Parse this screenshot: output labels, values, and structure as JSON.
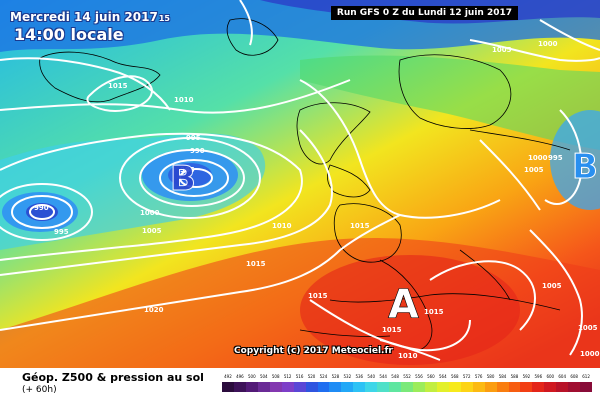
{
  "header": {
    "date_text": "Mercredi 14 juin 2017",
    "date_suffix": "15",
    "local_time": "14:00 locale",
    "run_text": "Run GFS 0 Z du Lundi 12 juin 2017"
  },
  "map": {
    "high_letters": [
      "A"
    ],
    "low_letters": [
      "B",
      "B"
    ],
    "isobar_labels": [
      "1000",
      "1005",
      "1015",
      "1010",
      "995",
      "990",
      "985",
      "990",
      "995",
      "1000",
      "1005",
      "1010",
      "1015",
      "1015",
      "1020",
      "1015",
      "1015",
      "1015",
      "1010",
      "1005",
      "1005",
      "1000",
      "995",
      "1005",
      "1000"
    ],
    "copyright": "Copyright (c) 2017 Meteociel.fr"
  },
  "legend": {
    "title": "Géop. Z500 & pression au sol",
    "subtitle": "(+ 60h)",
    "scale_values": [
      "492",
      "496",
      "500",
      "504",
      "508",
      "512",
      "516",
      "520",
      "524",
      "528",
      "532",
      "536",
      "540",
      "544",
      "548",
      "552",
      "556",
      "560",
      "564",
      "568",
      "572",
      "576",
      "580",
      "584",
      "588",
      "592",
      "596",
      "600",
      "604",
      "608",
      "612"
    ],
    "scale_colors": [
      "#2b0c3d",
      "#3d1259",
      "#521a77",
      "#6a2a96",
      "#8338b0",
      "#7d3fc8",
      "#5a47d6",
      "#2f55e0",
      "#1f6ef0",
      "#1f8cf5",
      "#22a8f7",
      "#2dc2f5",
      "#3ed6e8",
      "#4fe0c8",
      "#5fe6a0",
      "#7ae97a",
      "#9cec5a",
      "#c2ee40",
      "#e3f02a",
      "#f7ea1c",
      "#fdd416",
      "#fcba12",
      "#fb9d10",
      "#f97d0f",
      "#f75d10",
      "#f23f14",
      "#e42519",
      "#d01820",
      "#b81228",
      "#a00e30",
      "#880b38"
    ]
  }
}
